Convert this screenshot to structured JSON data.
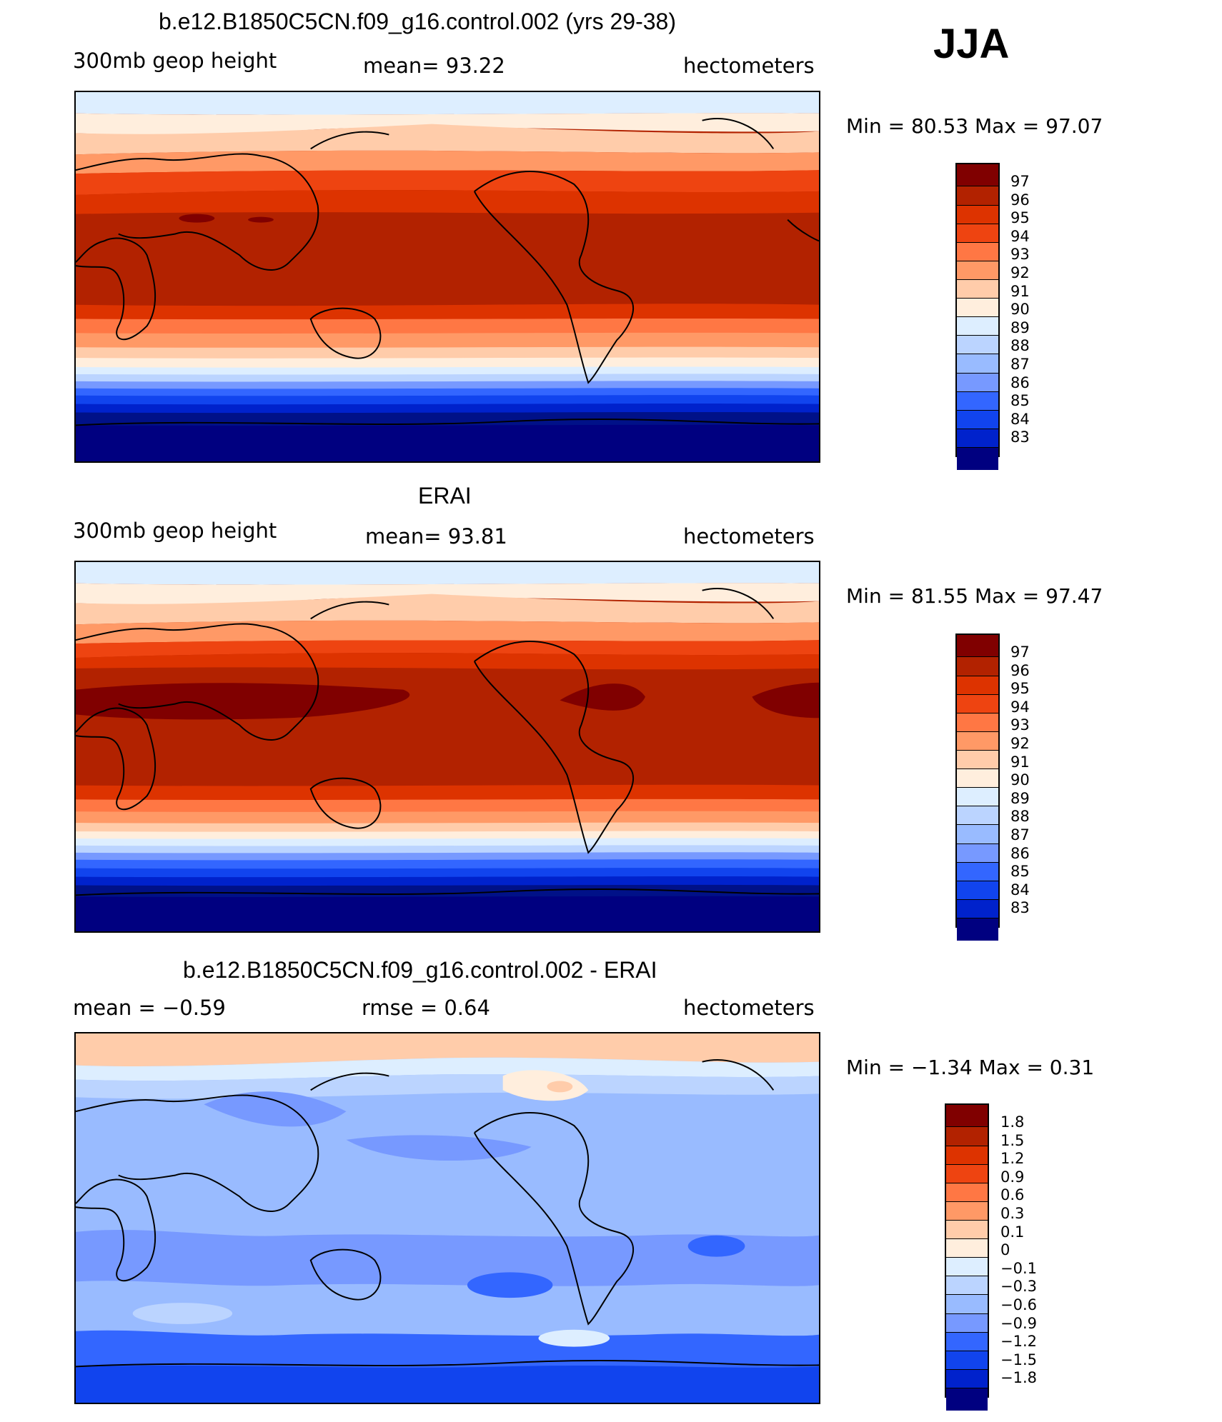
{
  "season": "JJA",
  "panels": [
    {
      "title": "b.e12.B1850C5CN.f09_g16.control.002 (yrs 29-38)",
      "left_label": "300mb  geop  height",
      "center_label": "mean=   93.22",
      "right_label": "hectometers",
      "minmax": "Min  =    80.53  Max  =     97.07",
      "colorbar_labels": [
        "97",
        "96",
        "95",
        "94",
        "93",
        "92",
        "91",
        "90",
        "89",
        "88",
        "87",
        "86",
        "85",
        "84",
        "83"
      ]
    },
    {
      "title": "ERAI",
      "left_label": "300mb  geop  height",
      "center_label": "mean=   93.81",
      "right_label": "hectometers",
      "minmax": "Min  =    81.55  Max  =     97.47",
      "colorbar_labels": [
        "97",
        "96",
        "95",
        "94",
        "93",
        "92",
        "91",
        "90",
        "89",
        "88",
        "87",
        "86",
        "85",
        "84",
        "83"
      ]
    },
    {
      "title": "b.e12.B1850C5CN.f09_g16.control.002 - ERAI",
      "left_label": "mean  =    −0.59",
      "center_label": "rmse  =     0.64",
      "right_label": "hectometers",
      "minmax": "Min  =   −1.34  Max  =      0.31",
      "colorbar_labels": [
        "1.8",
        "1.5",
        "1.2",
        "0.9",
        "0.6",
        "0.3",
        "0.1",
        "0",
        "−0.1",
        "−0.3",
        "−0.6",
        "−0.9",
        "−1.2",
        "−1.5",
        "−1.8"
      ]
    }
  ],
  "colors": {
    "palette": [
      "#800000",
      "#b22200",
      "#dd3300",
      "#ee4411",
      "#ff7744",
      "#ff9966",
      "#ffccaa",
      "#ffeedd",
      "#ddeeff",
      "#bbd4ff",
      "#99bbff",
      "#7799ff",
      "#3366ff",
      "#1144ee",
      "#0022cc",
      "#001188",
      "#000080"
    ],
    "land_outline": "#000000"
  }
}
